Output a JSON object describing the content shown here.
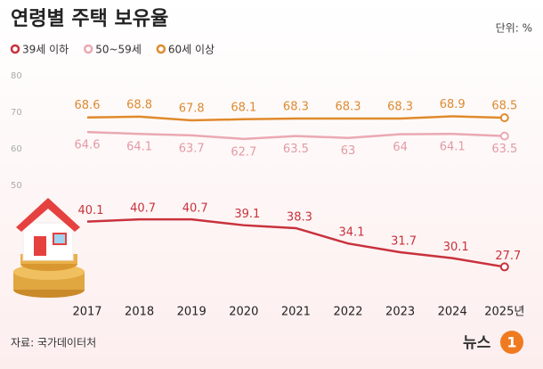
{
  "chart_data": {
    "type": "line",
    "title": "연령별 주택 보유율",
    "unit": "단위: %",
    "categories": [
      "2017",
      "2018",
      "2019",
      "2020",
      "2021",
      "2022",
      "2023",
      "2024",
      "2025년"
    ],
    "series": [
      {
        "name": "39세 이하",
        "color": "#c8323c",
        "label_color": "#c8323c",
        "values": [
          40.1,
          40.7,
          40.7,
          39.1,
          38.3,
          34.1,
          31.7,
          30.1,
          27.7
        ]
      },
      {
        "name": "50~59세",
        "color": "#eaa9b2",
        "label_color": "#e29aa4",
        "values": [
          64.6,
          64.1,
          63.7,
          62.7,
          63.5,
          63.0,
          64.0,
          64.1,
          63.5
        ]
      },
      {
        "name": "60세 이상",
        "color": "#e08a2c",
        "label_color": "#dc8a30",
        "values": [
          68.6,
          68.8,
          67.8,
          68.1,
          68.3,
          68.3,
          68.3,
          68.9,
          68.5
        ]
      }
    ],
    "ylim": [
      20,
      80
    ],
    "yticks": [
      50,
      60,
      70,
      80
    ],
    "grid": false,
    "source": "자료: 국가데이터처",
    "logo": {
      "text": "뉴스",
      "mark": "1"
    }
  }
}
